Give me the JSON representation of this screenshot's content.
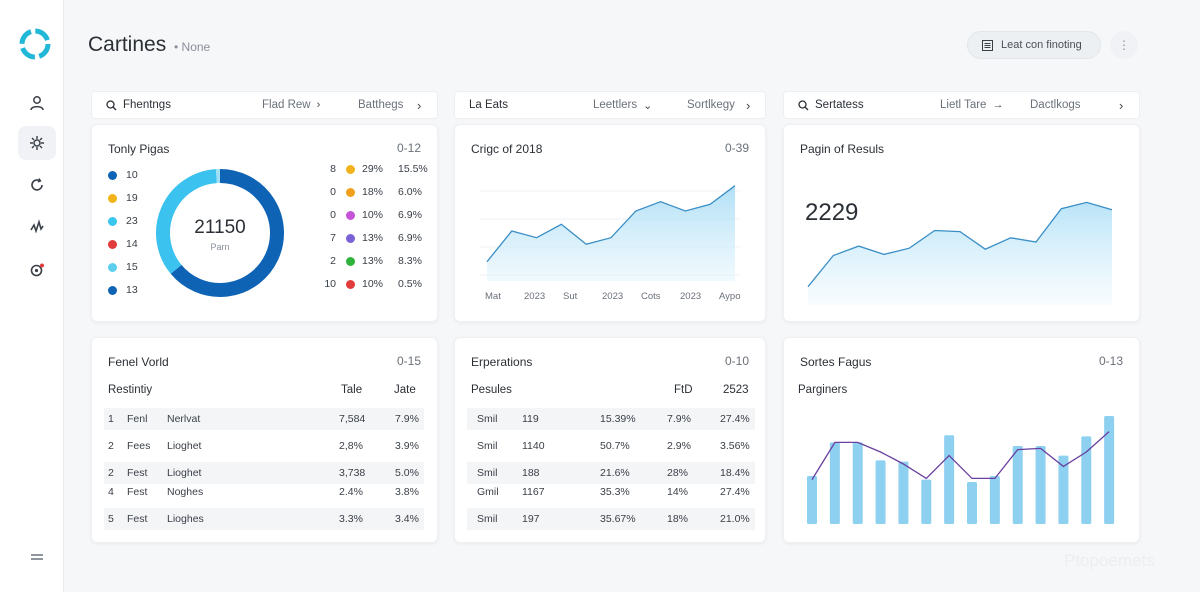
{
  "app": {
    "title": "Cartines",
    "crumb": "• None"
  },
  "header": {
    "action_label": "Leat con finoting",
    "more_label": "⋮"
  },
  "sidebar": {
    "items": [
      {
        "name": "user-icon"
      },
      {
        "name": "settings-icon"
      },
      {
        "name": "refresh-icon"
      },
      {
        "name": "chart-icon"
      },
      {
        "name": "notification-icon"
      }
    ],
    "bottom": {
      "name": "menu-icon"
    }
  },
  "tabbars": [
    {
      "left": "Fhentngs",
      "mid": "Flad Rew",
      "right": "Batthegs"
    },
    {
      "left": "La Eats",
      "mid": "Leettlers",
      "right": "Sortlkegy"
    },
    {
      "left": "Sertatess",
      "mid": "Lietl Tare",
      "right": "Dactlkogs"
    }
  ],
  "donut_card": {
    "title": "Tonly Pigas",
    "badge": "0-12",
    "center_value": "21150",
    "center_label": "Parn",
    "legend_left": [
      {
        "value": "10",
        "color": "#0f63b5"
      },
      {
        "value": "19",
        "color": "#f2b21b"
      },
      {
        "value": "23",
        "color": "#38c5ee"
      },
      {
        "value": "14",
        "color": "#e23b3b"
      },
      {
        "value": "15",
        "color": "#5ccfef"
      },
      {
        "value": "13",
        "color": "#0f63b5"
      }
    ],
    "legend_right": [
      {
        "n": "8",
        "pct": "29%",
        "val": "15.5%",
        "color": "#f2b21b"
      },
      {
        "n": "0",
        "pct": "18%",
        "val": "6.0%",
        "color": "#f2a01b"
      },
      {
        "n": "0",
        "pct": "10%",
        "val": "6.9%",
        "color": "#c654d9"
      },
      {
        "n": "7",
        "pct": "13%",
        "val": "6.9%",
        "color": "#7a62d6"
      },
      {
        "n": "2",
        "pct": "13%",
        "val": "8.3%",
        "color": "#2fb23a"
      },
      {
        "n": "10",
        "pct": "10%",
        "val": "0.5%",
        "color": "#e23b3b"
      }
    ],
    "segments": [
      {
        "value": 64,
        "color": "#0f63b5"
      },
      {
        "value": 35,
        "color": "#3bc2ef"
      },
      {
        "value": 1,
        "color": "#9fe0f6"
      }
    ]
  },
  "line_card": {
    "title": "Crigc of 2018",
    "badge": "0-39",
    "x_ticks": [
      "Mat",
      "2023",
      "Sut",
      "2023",
      "Cots",
      "2023",
      "Aypo"
    ]
  },
  "results_card": {
    "title": "Pagin of Resuls",
    "big_value": "2229"
  },
  "table1": {
    "title": "Fenel Vorld",
    "badge": "0-15",
    "headers": [
      "Restintiy",
      "Tale",
      "Jate"
    ],
    "rows": [
      {
        "num": "1",
        "a": "Fenl",
        "b": "Nerlvat",
        "c": "7,584",
        "d": "7.9%"
      },
      {
        "num": "2",
        "a": "Fees",
        "b": "Lioghet",
        "c": "2,8%",
        "d": "3.9%"
      },
      {
        "num": "2",
        "a": "Fest",
        "b": "Lioghet",
        "c": "3,738",
        "d": "5.0%"
      },
      {
        "num": "4",
        "a": "Fest",
        "b": "Noghes",
        "c": "2.4%",
        "d": "3.8%"
      },
      {
        "num": "5",
        "a": "Fest",
        "b": "Lioghes",
        "c": "3.3%",
        "d": "3.4%"
      }
    ]
  },
  "table2": {
    "title": "Erperations",
    "badge": "0-10",
    "headers": [
      "Pesules",
      "FtD",
      "2523"
    ],
    "rows": [
      {
        "a": "Smil",
        "b": "119",
        "c": "15.39%",
        "d": "7.9%",
        "e": "27.4%"
      },
      {
        "a": "Smil",
        "b": "1140",
        "c": "50.7%",
        "d": "2.9%",
        "e": "3.56%"
      },
      {
        "a": "Smil",
        "b": "188",
        "c": "21.6%",
        "d": "28%",
        "e": "18.4%"
      },
      {
        "a": "Gmil",
        "b": "1167",
        "c": "35.3%",
        "d": "14%",
        "e": "27.4%"
      },
      {
        "a": "Smil",
        "b": "197",
        "c": "35.67%",
        "d": "18%",
        "e": "21.0%"
      }
    ]
  },
  "bars_card": {
    "title": "Sortes Fagus",
    "badge": "0-13",
    "subtitle": "Parginers"
  },
  "chart_data": [
    {
      "type": "line",
      "series": [
        {
          "values": [
            10,
            33,
            28,
            38,
            23,
            28,
            48,
            55,
            48,
            53,
            67
          ]
        }
      ],
      "ylim": [
        0,
        75
      ],
      "grid": true
    },
    {
      "type": "area",
      "series": [
        {
          "values": [
            8,
            38,
            47,
            39,
            45,
            62,
            61,
            44,
            55,
            51,
            83,
            89,
            82
          ]
        }
      ],
      "ylim": [
        0,
        100
      ]
    },
    {
      "type": "bar",
      "series": [
        {
          "values": [
            40,
            68,
            68,
            53,
            52,
            37,
            74,
            35,
            40,
            65,
            65,
            57,
            73,
            90
          ]
        },
        {
          "values": [
            37,
            68,
            68,
            60,
            50,
            38,
            57,
            38,
            38,
            62,
            63,
            48,
            60,
            77
          ]
        }
      ],
      "ylim": [
        0,
        100
      ]
    }
  ],
  "watermark": "Ptopoemets"
}
